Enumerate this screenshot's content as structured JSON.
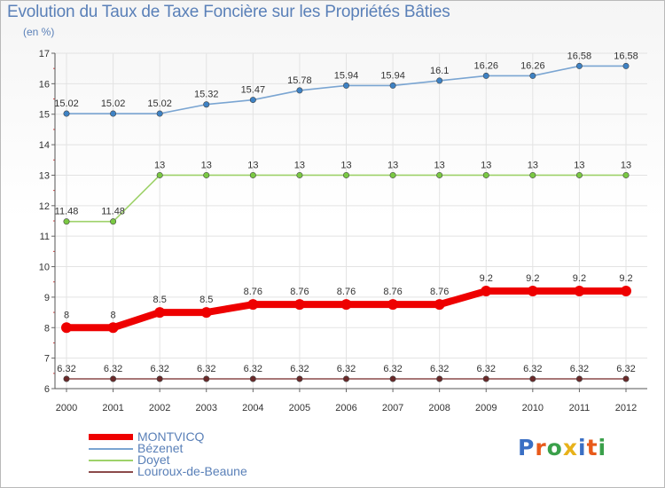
{
  "title": "Evolution du Taux de Taxe Foncière sur les Propriétés Bâties",
  "subtitle": "(en %)",
  "logo": "Proxiti",
  "colors": {
    "title": "#5a80b8",
    "logo_letters": [
      "#3a6fc4",
      "#e85a1a",
      "#3aa04a",
      "#e8b21a",
      "#3a6fc4",
      "#e85a1a",
      "#3aa04a"
    ]
  },
  "chart_data": {
    "type": "line",
    "x": [
      "2000",
      "2001",
      "2002",
      "2003",
      "2004",
      "2005",
      "2006",
      "2007",
      "2008",
      "2009",
      "2010",
      "2011",
      "2012"
    ],
    "ylim": [
      6,
      17
    ],
    "yticks": [
      6,
      7,
      8,
      9,
      10,
      11,
      12,
      13,
      14,
      15,
      16,
      17
    ],
    "grid": true,
    "legend_position": "bottom-left",
    "series": [
      {
        "name": "MONTVICQ",
        "color": "#ee0000",
        "markerColor": "#ee0000",
        "thick": true,
        "values": [
          8,
          8,
          8.5,
          8.5,
          8.76,
          8.76,
          8.76,
          8.76,
          8.76,
          9.2,
          9.2,
          9.2,
          9.2
        ],
        "labels": [
          "8",
          "8",
          "8.5",
          "8.5",
          "8.76",
          "8.76",
          "8.76",
          "8.76",
          "8.76",
          "9.2",
          "9.2",
          "9.2",
          "9.2"
        ]
      },
      {
        "name": "Bézenet",
        "color": "#7aa5d2",
        "markerColor": "#3e82c4",
        "thick": false,
        "values": [
          15.02,
          15.02,
          15.02,
          15.32,
          15.47,
          15.78,
          15.94,
          15.94,
          16.1,
          16.26,
          16.26,
          16.58,
          16.58
        ],
        "labels": [
          "15.02",
          "15.02",
          "15.02",
          "15.32",
          "15.47",
          "15.78",
          "15.94",
          "15.94",
          "16.1",
          "16.26",
          "16.26",
          "16.58",
          "16.58"
        ]
      },
      {
        "name": "Doyet",
        "color": "#9ed26a",
        "markerColor": "#7ac943",
        "thick": false,
        "values": [
          11.48,
          11.48,
          13,
          13,
          13,
          13,
          13,
          13,
          13,
          13,
          13,
          13,
          13
        ],
        "labels": [
          "11.48",
          "11.48",
          "13",
          "13",
          "13",
          "13",
          "13",
          "13",
          "13",
          "13",
          "13",
          "13",
          "13"
        ]
      },
      {
        "name": "Louroux-de-Beaune",
        "color": "#8b4a4a",
        "markerColor": "#6b2a2a",
        "thick": false,
        "values": [
          6.32,
          6.32,
          6.32,
          6.32,
          6.32,
          6.32,
          6.32,
          6.32,
          6.32,
          6.32,
          6.32,
          6.32,
          6.32
        ],
        "labels": [
          "6.32",
          "6.32",
          "6.32",
          "6.32",
          "6.32",
          "6.32",
          "6.32",
          "6.32",
          "6.32",
          "6.32",
          "6.32",
          "6.32",
          "6.32"
        ]
      }
    ]
  }
}
